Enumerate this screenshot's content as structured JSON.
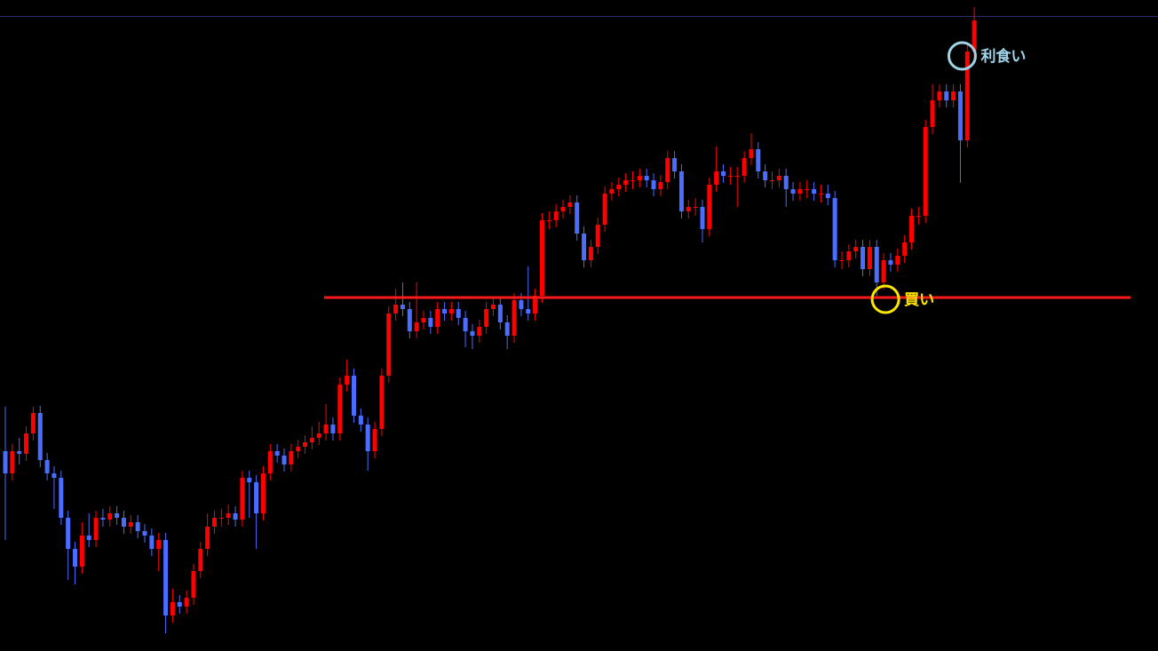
{
  "chart_data": {
    "type": "candlestick",
    "up_color": "#ff0000",
    "down_color": "#4a6cff",
    "ylim": [
      0,
      733
    ],
    "open": [
      225,
      200,
      225,
      222,
      245,
      268,
      215,
      200,
      195,
      150,
      115,
      95,
      130,
      125,
      150,
      148,
      155,
      150,
      140,
      145,
      135,
      130,
      115,
      125,
      40,
      55,
      50,
      60,
      90,
      115,
      140,
      150,
      150,
      155,
      148,
      195,
      190,
      155,
      200,
      225,
      220,
      210,
      225,
      230,
      235,
      240,
      245,
      255,
      245,
      300,
      310,
      265,
      255,
      225,
      250,
      310,
      380,
      390,
      385,
      360,
      370,
      375,
      365,
      385,
      380,
      385,
      375,
      360,
      355,
      365,
      385,
      390,
      370,
      355,
      395,
      385,
      380,
      400,
      485,
      485,
      495,
      500,
      505,
      470,
      440,
      455,
      480,
      515,
      520,
      525,
      530,
      530,
      535,
      530,
      520,
      528,
      555,
      540,
      495,
      500,
      500,
      475,
      525,
      540,
      535,
      535,
      535,
      555,
      565,
      540,
      530,
      530,
      535,
      520,
      515,
      520,
      520,
      515,
      515,
      510,
      440,
      440,
      450,
      455,
      430,
      455,
      415,
      440,
      435,
      445,
      460,
      490,
      490,
      590,
      620,
      630,
      620,
      630,
      575,
      675
    ],
    "high": [
      275,
      233,
      240,
      253,
      275,
      276,
      223,
      208,
      203,
      158,
      123,
      145,
      155,
      158,
      160,
      163,
      163,
      158,
      153,
      153,
      143,
      138,
      133,
      133,
      70,
      63,
      68,
      98,
      123,
      155,
      158,
      160,
      165,
      163,
      203,
      203,
      198,
      208,
      233,
      233,
      228,
      233,
      238,
      243,
      253,
      258,
      278,
      263,
      308,
      328,
      318,
      273,
      263,
      258,
      318,
      388,
      408,
      415,
      393,
      415,
      383,
      383,
      393,
      393,
      393,
      393,
      383,
      368,
      373,
      393,
      398,
      398,
      378,
      403,
      403,
      433,
      408,
      493,
      495,
      503,
      508,
      513,
      513,
      478,
      463,
      488,
      523,
      528,
      533,
      538,
      540,
      543,
      543,
      538,
      536,
      563,
      563,
      548,
      508,
      510,
      508,
      533,
      568,
      548,
      545,
      545,
      563,
      583,
      573,
      548,
      540,
      543,
      543,
      528,
      528,
      530,
      528,
      525,
      525,
      518,
      450,
      458,
      463,
      463,
      463,
      463,
      448,
      448,
      453,
      468,
      498,
      500,
      598,
      638,
      638,
      638,
      638,
      638,
      683,
      725
    ],
    "low": [
      125,
      192,
      210,
      214,
      237,
      207,
      192,
      160,
      142,
      80,
      75,
      87,
      117,
      117,
      140,
      140,
      142,
      132,
      132,
      127,
      122,
      107,
      90,
      20,
      32,
      42,
      42,
      52,
      82,
      107,
      132,
      140,
      142,
      140,
      140,
      150,
      115,
      147,
      192,
      212,
      202,
      202,
      217,
      222,
      227,
      232,
      237,
      237,
      237,
      292,
      257,
      247,
      203,
      217,
      242,
      302,
      372,
      377,
      352,
      352,
      362,
      357,
      357,
      372,
      372,
      367,
      342,
      340,
      347,
      357,
      377,
      362,
      340,
      347,
      377,
      372,
      372,
      392,
      475,
      477,
      487,
      492,
      462,
      432,
      432,
      447,
      472,
      507,
      512,
      517,
      520,
      522,
      522,
      512,
      512,
      520,
      532,
      487,
      487,
      490,
      460,
      467,
      517,
      527,
      525,
      500,
      527,
      547,
      532,
      522,
      520,
      522,
      500,
      507,
      507,
      510,
      507,
      505,
      502,
      432,
      430,
      432,
      442,
      422,
      422,
      400,
      407,
      427,
      427,
      437,
      452,
      480,
      482,
      582,
      612,
      612,
      612,
      527,
      567,
      667
    ],
    "close": [
      200,
      225,
      222,
      245,
      268,
      215,
      200,
      195,
      150,
      115,
      95,
      130,
      125,
      150,
      148,
      155,
      150,
      140,
      145,
      135,
      130,
      115,
      125,
      40,
      55,
      50,
      60,
      90,
      115,
      140,
      150,
      150,
      155,
      148,
      195,
      190,
      155,
      200,
      225,
      220,
      210,
      225,
      230,
      235,
      240,
      245,
      255,
      245,
      300,
      310,
      265,
      255,
      225,
      250,
      310,
      380,
      390,
      385,
      360,
      370,
      375,
      365,
      385,
      380,
      385,
      375,
      360,
      355,
      365,
      385,
      390,
      370,
      355,
      395,
      385,
      380,
      400,
      485,
      485,
      495,
      500,
      505,
      470,
      440,
      455,
      480,
      515,
      520,
      525,
      530,
      530,
      535,
      530,
      520,
      528,
      555,
      540,
      495,
      500,
      500,
      475,
      525,
      540,
      535,
      535,
      535,
      555,
      565,
      540,
      530,
      530,
      535,
      520,
      515,
      520,
      520,
      515,
      515,
      510,
      440,
      440,
      450,
      455,
      430,
      455,
      415,
      440,
      435,
      445,
      460,
      490,
      490,
      590,
      620,
      630,
      620,
      630,
      575,
      675,
      710
    ],
    "support_level": 398,
    "support_color": "#ff1a1a",
    "annotations": [
      {
        "text": "買い",
        "index": 126,
        "price": 398,
        "color": "#ffe600"
      },
      {
        "text": "利食い",
        "index": 137,
        "price": 672,
        "color": "#9fd3e8"
      }
    ]
  }
}
